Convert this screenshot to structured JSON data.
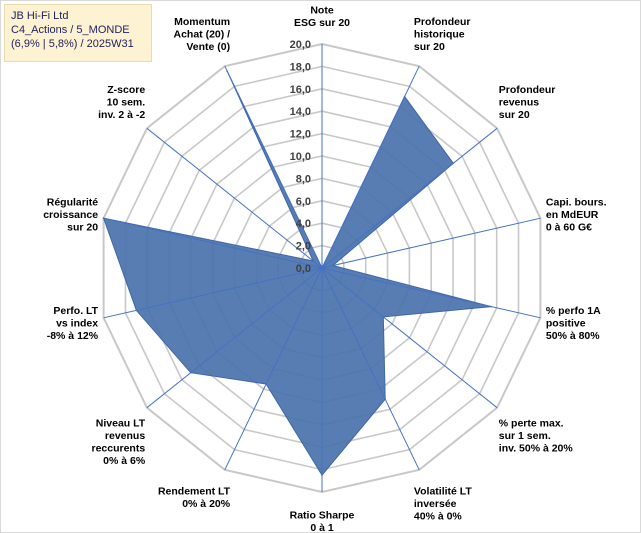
{
  "info": {
    "line1": "JB Hi-Fi Ltd",
    "line2": "C4_Actions / 5_MONDE",
    "line3": "(6,9% | 5,8%) / 2025W31"
  },
  "colors": {
    "fill": "#4a72ad",
    "stroke": "#3f66a6",
    "grid": "#c8c8c8",
    "spoke": "#4472c4"
  },
  "chart_data": {
    "type": "radar",
    "rmin": 0,
    "rmax": 20,
    "tick_step": 2,
    "ticks": [
      "0,0",
      "2,0",
      "4,0",
      "6,0",
      "8,0",
      "10,0",
      "12,0",
      "14,0",
      "16,0",
      "18,0",
      "20,0"
    ],
    "grid": true,
    "axes": [
      [
        "Note",
        "ESG sur 20"
      ],
      [
        "Profondeur",
        "historique",
        "sur 20"
      ],
      [
        "Profondeur",
        "revenus",
        "sur 20"
      ],
      [
        "Capi. bours.",
        "en MdEUR",
        "0 à 60 G€"
      ],
      [
        "% perfo 1A",
        "positive",
        "50% à 80%"
      ],
      [
        "% perte max.",
        "sur 1 sem.",
        "inv. 50% à 20%"
      ],
      [
        "Volatilité LT",
        "inversée",
        "40% à 0%"
      ],
      [
        "Ratio Sharpe",
        "0 à 1"
      ],
      [
        "Rendement LT",
        "0% à 20%"
      ],
      [
        "Niveau LT",
        "revenus",
        "reccurents",
        "0% à 6%"
      ],
      [
        "Perfo. LT",
        "vs index",
        "-8% à 12%"
      ],
      [
        "Régularité",
        "croissance",
        "sur 20"
      ],
      [
        "Z-score",
        "10 sem.",
        "inv. 2 à -2"
      ],
      [
        "Momentum",
        "Achat (20) /",
        "Vente (0)"
      ]
    ],
    "series": [
      {
        "values": [
          0,
          17,
          15,
          1,
          15.5,
          7,
          13,
          18.5,
          11.5,
          15,
          17,
          20,
          1,
          19.5
        ]
      }
    ]
  }
}
